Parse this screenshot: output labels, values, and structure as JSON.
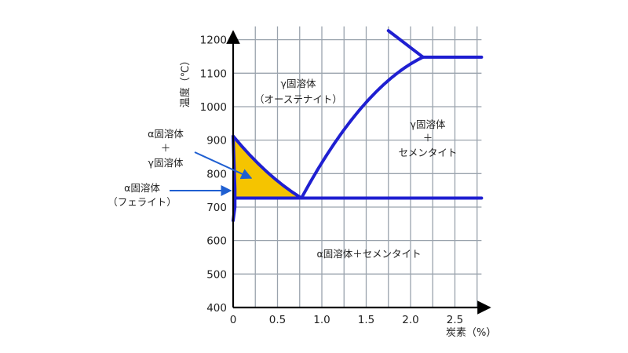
{
  "colors": {
    "boundary": "#1f1fd1",
    "gamma_alpha_fill": "#f5c400",
    "ferrite_fill": "#3aa0e8",
    "grid": "#9aa3ad",
    "arrow": "#1f5fd1"
  },
  "axes": {
    "xlabel": "炭素（%）",
    "ylabel": "温度（℃）",
    "x_ticks": [
      "0",
      "0.5",
      "1.0",
      "1.5",
      "2.0",
      "2.5"
    ],
    "y_ticks": [
      "400",
      "500",
      "600",
      "700",
      "800",
      "900",
      "1000",
      "1100",
      "1200"
    ],
    "xlim": [
      0,
      2.8
    ],
    "ylim": [
      400,
      1260
    ]
  },
  "regions": {
    "gamma": {
      "line1": "γ固溶体",
      "line2": "（オーステナイト）"
    },
    "gamma_cementite": {
      "line1": "γ固溶体",
      "line2": "＋",
      "line3": "セメンタイト"
    },
    "alpha_cementite": {
      "line1": "α固溶体＋セメンタイト"
    }
  },
  "callouts": {
    "alpha_gamma": {
      "line1": "α固溶体",
      "line2": "＋",
      "line3": "γ固溶体"
    },
    "ferrite": {
      "line1": "α固溶体",
      "line2": "（フェライト）"
    }
  }
}
